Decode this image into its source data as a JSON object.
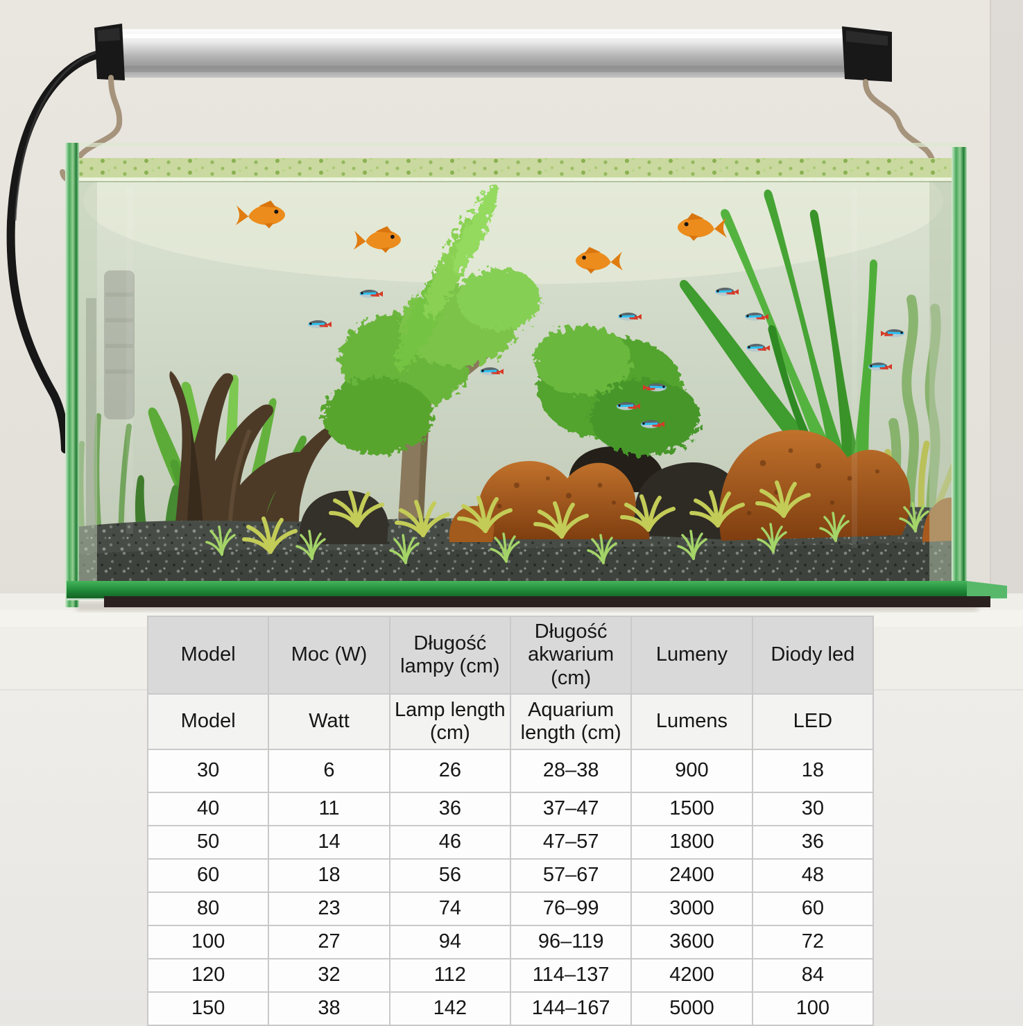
{
  "table": {
    "columns_pl": [
      "Model",
      "Moc (W)",
      "Długość lampy (cm)",
      "Długość akwarium (cm)",
      "Lumeny",
      "Diody led"
    ],
    "columns_en": [
      "Model",
      "Watt",
      "Lamp length (cm)",
      "Aquarium length (cm)",
      "Lumens",
      "LED"
    ],
    "rows": [
      [
        "30",
        "6",
        "26",
        "28–38",
        "900",
        "18"
      ],
      [
        "40",
        "11",
        "36",
        "37–47",
        "1500",
        "30"
      ],
      [
        "50",
        "14",
        "46",
        "47–57",
        "1800",
        "36"
      ],
      [
        "60",
        "18",
        "56",
        "57–67",
        "2400",
        "48"
      ],
      [
        "80",
        "23",
        "74",
        "76–99",
        "3000",
        "60"
      ],
      [
        "100",
        "27",
        "94",
        "96–119",
        "3600",
        "72"
      ],
      [
        "120",
        "32",
        "112",
        "114–137",
        "4200",
        "84"
      ],
      [
        "150",
        "38",
        "142",
        "144–167",
        "5000",
        "100"
      ]
    ]
  },
  "colors": {
    "header_bg": "#d9d9d9",
    "subheader_bg": "#f3f3f2",
    "cell_bg": "#fdfdfd",
    "table_border": "#c9c9c9",
    "wall": "#e8e4de",
    "lamp_silver": "#c9c9c9",
    "lamp_cap_black": "#181818",
    "glass_green": "#2f8f3f",
    "water_green": "#cdd4c3",
    "substrate_gray": "#454b44",
    "lava_rock_orange": "#a95c1e",
    "fish_orange": "#ec8c1c",
    "tetra_blue": "#2ec1f0",
    "tetra_red": "#d63a28"
  }
}
